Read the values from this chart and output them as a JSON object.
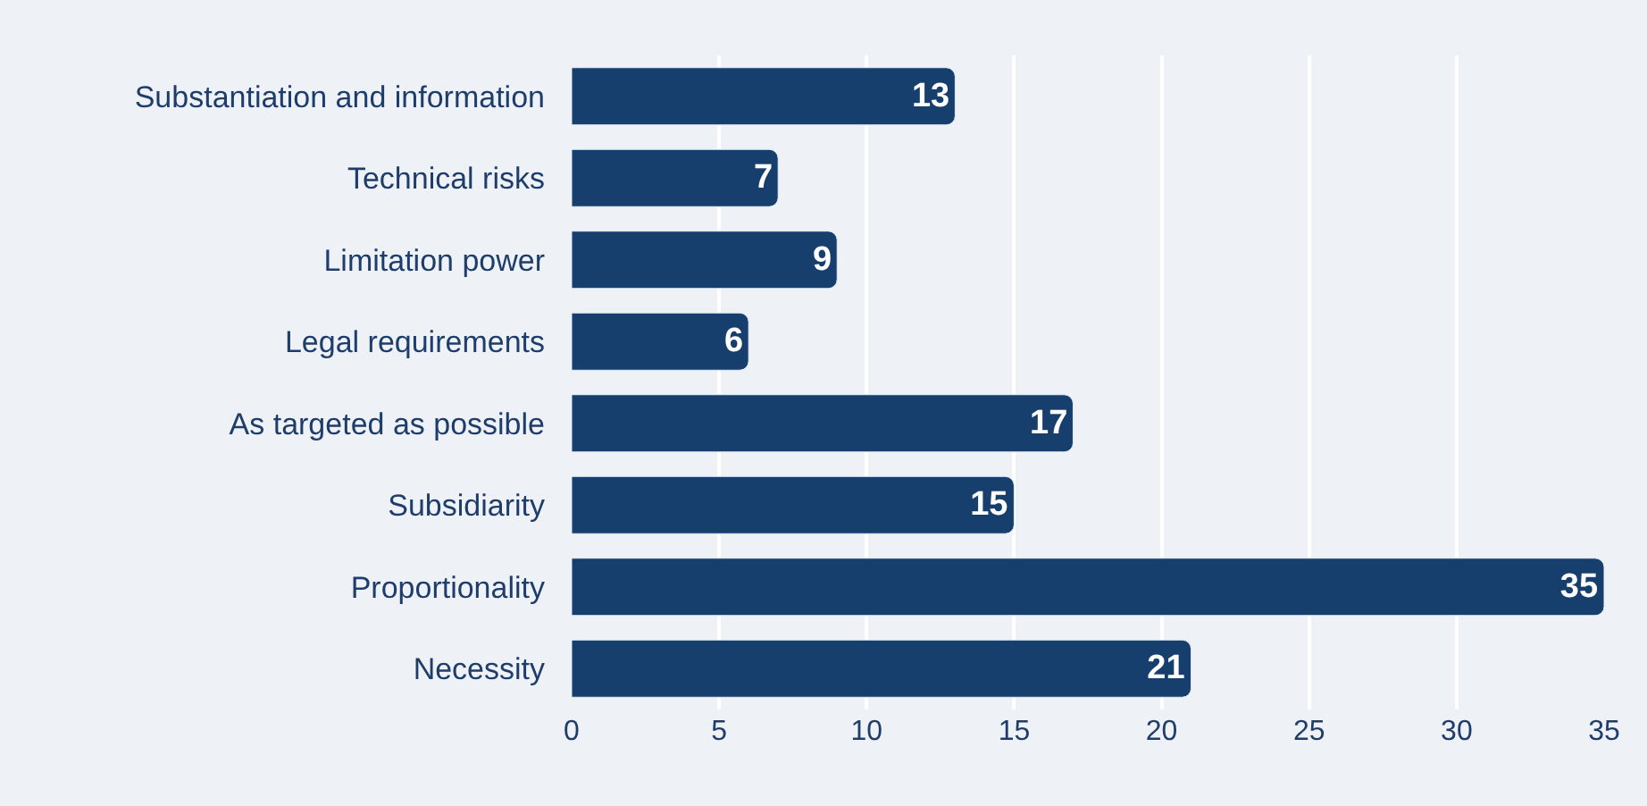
{
  "chart_data": {
    "type": "bar",
    "orientation": "horizontal",
    "categories": [
      "Substantiation and information",
      "Technical risks",
      "Limitation power",
      "Legal requirements",
      "As targeted as possible",
      "Subsidiarity",
      "Proportionality",
      "Necessity"
    ],
    "values": [
      13,
      7,
      9,
      6,
      17,
      15,
      35,
      21
    ],
    "color": "#173f6e",
    "xlim": [
      0,
      35
    ],
    "xticks": [
      0,
      5,
      10,
      15,
      20,
      25,
      30,
      35
    ],
    "grid": "x",
    "data_labels": true,
    "legend": false
  }
}
